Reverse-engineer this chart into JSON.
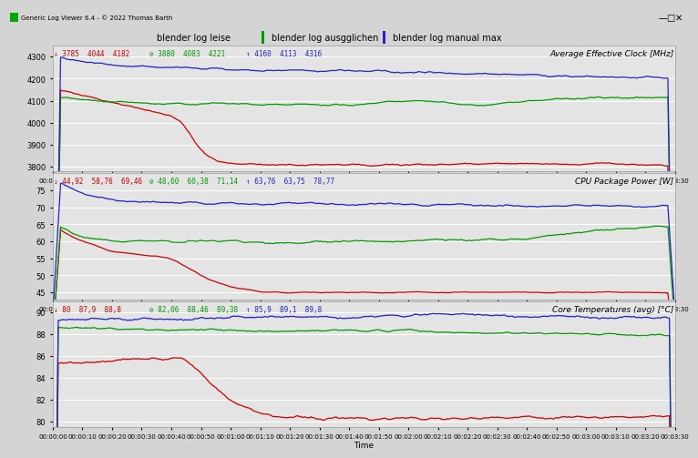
{
  "title_bar": "Generic Log Viewer 6.4 - © 2022 Thomas Barth",
  "legend_labels": [
    "blender log leise",
    "blender log ausgglichen",
    "blender log manual max"
  ],
  "legend_colors": [
    "#cc0000",
    "#00aa00",
    "#0000cc"
  ],
  "panel1_title": "Average Effective Clock [MHz]",
  "panel1_ylim": [
    3780,
    4350
  ],
  "panel1_yticks": [
    3800,
    3900,
    4000,
    4100,
    4200,
    4300
  ],
  "panel2_title": "CPU Package Power [W]",
  "panel2_ylim": [
    43,
    80
  ],
  "panel2_yticks": [
    45,
    50,
    55,
    60,
    65,
    70,
    75
  ],
  "panel3_title": "Core Temperatures (avg) [°C]",
  "panel3_ylim": [
    79.5,
    91
  ],
  "panel3_yticks": [
    80,
    82,
    84,
    86,
    88,
    90
  ],
  "stats1_red": "↓ 3785  4044  4182",
  "stats1_green": "⊘ 3880  4083  4221",
  "stats1_blue": "↑ 4160  4113  4316",
  "stats2_red": "↓ 44,92  58,76  69,46",
  "stats2_green": "⊘ 48,60  60,38  71,14",
  "stats2_blue": "↑ 63,76  63,75  78,77",
  "stats3_red": "↓ 80  87,9  88,8",
  "stats3_green": "⊘ 82,06  88,46  89,38",
  "stats3_blue": "↑ 85,9  89,1  89,8",
  "time_total_seconds": 210,
  "bg_color": "#d4d4d4",
  "plot_bg_color": "#e4e4e4",
  "grid_color": "#ffffff",
  "red": "#cc0000",
  "green": "#009900",
  "blue": "#2222cc"
}
